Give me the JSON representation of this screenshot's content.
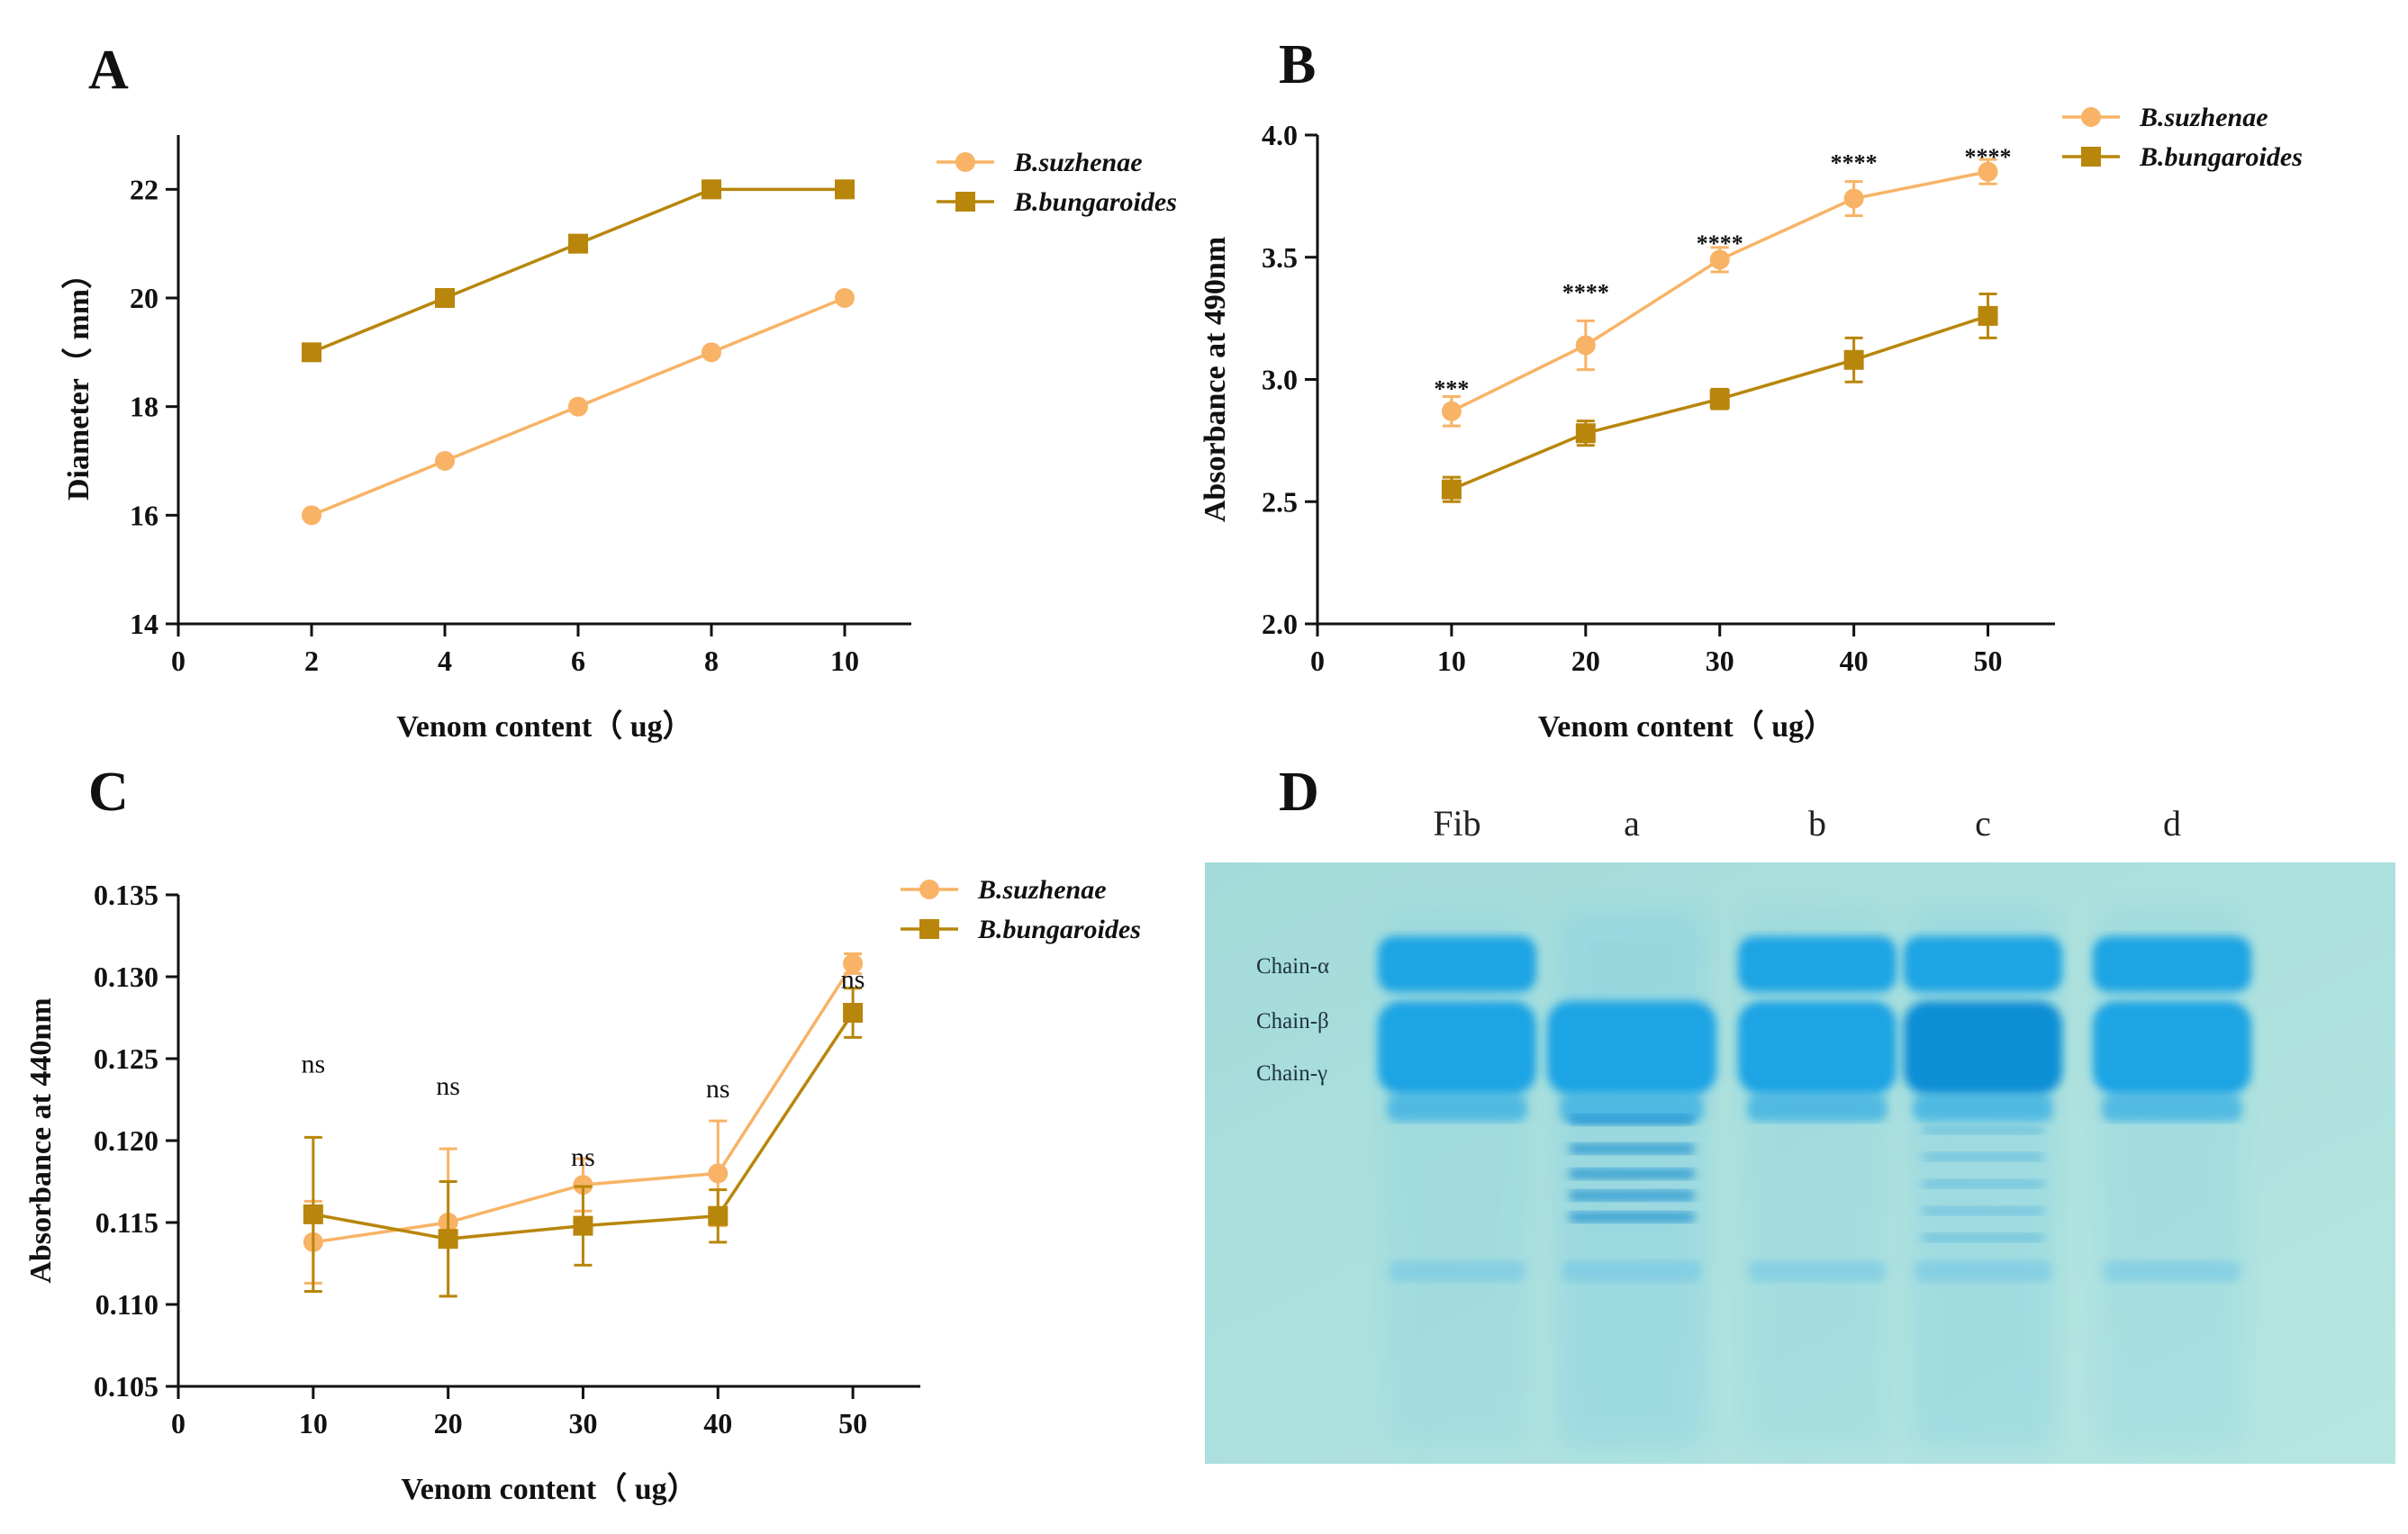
{
  "colors": {
    "suzhenae": "#F8B366",
    "bungaroides": "#B8860B",
    "axis": "#111111",
    "gel_bg": "#A9DFDD",
    "band": "#1AA4E4",
    "band_dark": "#0E8FD6"
  },
  "chart_data": [
    {
      "panel": "A",
      "type": "line",
      "xlabel": "Venom content（ ug）",
      "ylabel": "Diameter（ mm）",
      "xlim": [
        0,
        11
      ],
      "ylim": [
        14,
        23
      ],
      "xticks": [
        0,
        2,
        4,
        6,
        8,
        10
      ],
      "yticks": [
        14,
        16,
        18,
        20,
        22
      ],
      "legend_position": "top-right",
      "series": [
        {
          "name": "B.suzhenae",
          "marker": "circle",
          "x": [
            2,
            4,
            6,
            8,
            10
          ],
          "values": [
            16,
            17,
            18,
            19,
            20
          ],
          "errors": [
            0,
            0,
            0,
            0,
            0
          ]
        },
        {
          "name": "B.bungaroides",
          "marker": "square",
          "x": [
            2,
            4,
            6,
            8,
            10
          ],
          "values": [
            19,
            20,
            21,
            22,
            22
          ],
          "errors": [
            0,
            0,
            0,
            0,
            0
          ]
        }
      ],
      "annotations": []
    },
    {
      "panel": "B",
      "type": "line",
      "xlabel": "Venom content（ ug）",
      "ylabel": "Absorbance at 490nm",
      "xlim": [
        0,
        55
      ],
      "ylim": [
        2.0,
        4.0
      ],
      "xticks": [
        0,
        10,
        20,
        30,
        40,
        50
      ],
      "yticks": [
        "2.0",
        "2.5",
        "3.0",
        "3.5",
        "4.0"
      ],
      "legend_position": "top-right",
      "series": [
        {
          "name": "B.suzhenae",
          "marker": "circle",
          "x": [
            10,
            20,
            30,
            40,
            50
          ],
          "values": [
            2.87,
            3.14,
            3.49,
            3.74,
            3.85
          ],
          "errors": [
            0.06,
            0.1,
            0.05,
            0.07,
            0.05
          ]
        },
        {
          "name": "B.bungaroides",
          "marker": "square",
          "x": [
            10,
            20,
            30,
            40,
            50
          ],
          "values": [
            2.55,
            2.78,
            2.92,
            3.08,
            3.26
          ],
          "errors": [
            0.05,
            0.05,
            0.04,
            0.09,
            0.09
          ]
        }
      ],
      "annotations": [
        {
          "x": 10,
          "label": "***"
        },
        {
          "x": 20,
          "label": "****"
        },
        {
          "x": 30,
          "label": "****"
        },
        {
          "x": 40,
          "label": "****"
        },
        {
          "x": 50,
          "label": "****"
        }
      ]
    },
    {
      "panel": "C",
      "type": "line",
      "xlabel": "Venom content（ ug）",
      "ylabel": "Absorbance at 440nm",
      "xlim": [
        0,
        55
      ],
      "ylim": [
        0.105,
        0.135
      ],
      "xticks": [
        0,
        10,
        20,
        30,
        40,
        50
      ],
      "yticks": [
        "0.105",
        "0.110",
        "0.115",
        "0.120",
        "0.125",
        "0.130",
        "0.135"
      ],
      "legend_position": "top-right",
      "series": [
        {
          "name": "B.suzhenae",
          "marker": "circle",
          "x": [
            10,
            20,
            30,
            40,
            50
          ],
          "values": [
            0.1138,
            0.115,
            0.1173,
            0.118,
            0.1308
          ],
          "errors": [
            0.0025,
            0.0045,
            0.0016,
            0.0032,
            0.0006
          ]
        },
        {
          "name": "B.bungaroides",
          "marker": "square",
          "x": [
            10,
            20,
            30,
            40,
            50
          ],
          "values": [
            0.1155,
            0.114,
            0.1148,
            0.1154,
            0.1278
          ],
          "errors": [
            0.0047,
            0.0035,
            0.0024,
            0.0016,
            0.0015
          ]
        }
      ],
      "annotations": [
        {
          "x": 10,
          "label": "ns"
        },
        {
          "x": 20,
          "label": "ns"
        },
        {
          "x": 30,
          "label": "ns"
        },
        {
          "x": 40,
          "label": "ns"
        },
        {
          "x": 50,
          "label": "ns"
        }
      ]
    }
  ],
  "gel": {
    "panel": "D",
    "lanes": [
      "Fib",
      "a",
      "b",
      "c",
      "d"
    ],
    "chains": [
      "Chain-α",
      "Chain-β",
      "Chain-γ"
    ]
  }
}
